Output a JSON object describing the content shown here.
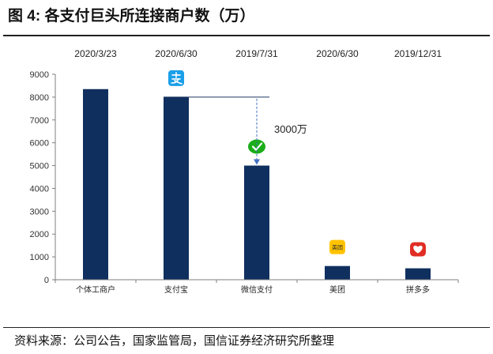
{
  "figure": {
    "title": "图 4:  各支付巨头所连接商户数（万）",
    "source": "资料来源：公司公告，国家监管局，国信证券经济研究所整理"
  },
  "chart_data": {
    "type": "bar",
    "categories": [
      "个体工商户",
      "支付宝",
      "微信支付",
      "美团",
      "拼多多"
    ],
    "dates": [
      "2020/3/23",
      "2020/6/30",
      "2019/7/31",
      "2020/6/30",
      "2019/12/31"
    ],
    "values": [
      8350,
      8000,
      5000,
      600,
      500
    ],
    "ylim": [
      0,
      9000
    ],
    "yticks": [
      0,
      1000,
      2000,
      3000,
      4000,
      5000,
      6000,
      7000,
      8000,
      9000
    ],
    "annotation": {
      "text": "3000万",
      "from_value": 8000,
      "to_value": 5000
    },
    "logos": [
      {
        "category": "支付宝",
        "icon": "alipay-logo-icon",
        "color": "#1a9fe8"
      },
      {
        "category": "微信支付",
        "icon": "wechat-pay-logo-icon",
        "color": "#1aad19"
      },
      {
        "category": "美团",
        "icon": "meituan-logo-icon",
        "color": "#ffc300",
        "text": "美团"
      },
      {
        "category": "拼多多",
        "icon": "pinduoduo-logo-icon",
        "color": "#e02e24"
      }
    ],
    "bar_color": "#0f2f5f",
    "grid": false
  }
}
